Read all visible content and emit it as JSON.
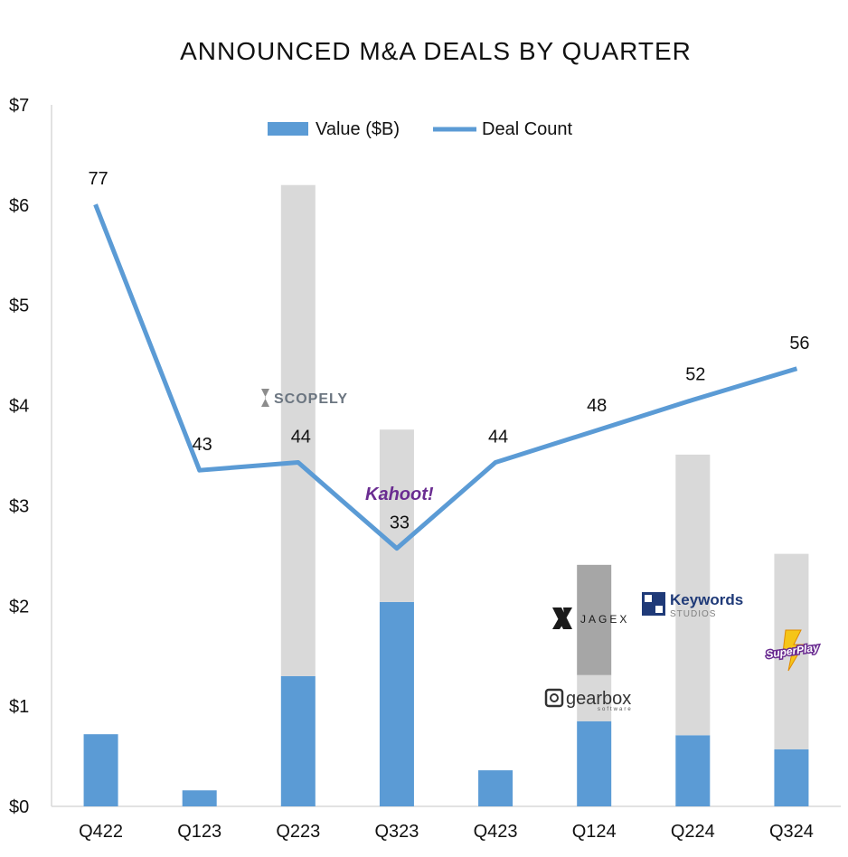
{
  "chart_data": {
    "type": "bar",
    "title": "ANNOUNCED M&A DEALS BY QUARTER",
    "xlabel": "",
    "ylabel": "",
    "ylim": [
      0,
      7
    ],
    "y_tick_labels": [
      "$0",
      "$1",
      "$2",
      "$3",
      "$4",
      "$5",
      "$6",
      "$7"
    ],
    "categories": [
      "Q422",
      "Q123",
      "Q223",
      "Q323",
      "Q423",
      "Q124",
      "Q224",
      "Q324"
    ],
    "series": [
      {
        "name": "Value ($B)",
        "kind": "bar",
        "color": "#5b9bd5",
        "values": [
          0.72,
          0.16,
          1.3,
          2.04,
          0.36,
          0.85,
          0.71,
          0.57
        ]
      },
      {
        "name": "Deal Count",
        "kind": "line",
        "color": "#5b9bd5",
        "values": [
          77,
          43,
          44,
          33,
          44,
          48,
          52,
          56
        ]
      }
    ],
    "stacked_deals": [
      {
        "category": "Q223",
        "value": 4.9,
        "color": "#d9d9d9",
        "logo": "SCOPELY"
      },
      {
        "category": "Q323",
        "value": 1.72,
        "color": "#d9d9d9",
        "logo": "Kahoot!"
      },
      {
        "category": "Q124",
        "value": 0.46,
        "color": "#d9d9d9",
        "logo": "gearbox"
      },
      {
        "category": "Q124",
        "value": 1.1,
        "color": "#a6a6a6",
        "logo": "JAGEX"
      },
      {
        "category": "Q224",
        "value": 2.8,
        "color": "#d9d9d9",
        "logo": "Keywords"
      },
      {
        "category": "Q324",
        "value": 1.95,
        "color": "#d9d9d9",
        "logo": "SuperPlay"
      }
    ],
    "legend": {
      "position": "top-center",
      "entries": [
        "Value ($B)",
        "Deal Count"
      ]
    },
    "grid": false
  },
  "logos": {
    "scopely": "SCOPELY",
    "kahoot": "Kahoot!",
    "jagex": "JAGEX",
    "gearbox_main": "gearbox",
    "gearbox_sub": "software",
    "keywords_main": "Keywords",
    "keywords_sub": "STUDIOS",
    "superplay": "SuperPlay"
  },
  "colors": {
    "value_bar": "#5b9bd5",
    "deal_line": "#5b9bd5",
    "other_bar": "#d9d9d9",
    "jagex_bar": "#a6a6a6"
  }
}
